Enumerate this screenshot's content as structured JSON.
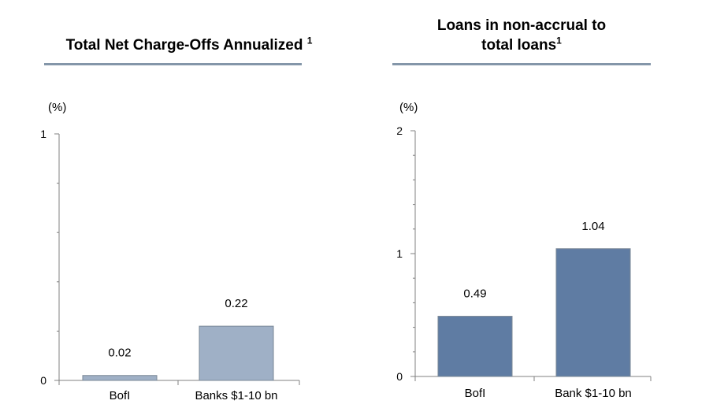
{
  "chart_data": [
    {
      "type": "bar",
      "title": "Total Net Charge-Offs Annualized",
      "title_footnote": "1",
      "unit_label": "(%)",
      "categories": [
        "BofI",
        "Banks $1-10 bn"
      ],
      "values": [
        0.02,
        0.22
      ],
      "value_labels": [
        "0.02",
        "0.22"
      ],
      "ylim": [
        0,
        1
      ],
      "y_tick_labels": [
        "0",
        "1"
      ],
      "minor_ticks": 5,
      "bar_color": "#9fb0c6",
      "grid": false
    },
    {
      "type": "bar",
      "title_line1": "Loans in non-accrual to",
      "title_line2": "total loans",
      "title_footnote": "1",
      "unit_label": "(%)",
      "categories": [
        "BofI",
        "Bank $1-10 bn"
      ],
      "values": [
        0.49,
        1.04
      ],
      "value_labels": [
        "0.49",
        "1.04"
      ],
      "ylim": [
        0,
        2
      ],
      "y_tick_labels": [
        "0",
        "1",
        "2"
      ],
      "minor_ticks": 5,
      "bar_color": "#5f7ca3",
      "grid": false
    }
  ],
  "colors": {
    "title_rule": "#8496a9",
    "axis": "#808080",
    "bar_border": "#7a8796"
  }
}
